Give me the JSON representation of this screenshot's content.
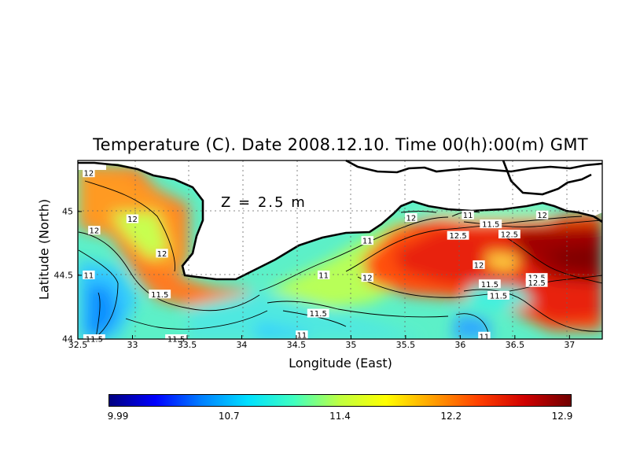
{
  "chart_data": {
    "type": "heatmap",
    "title": "Temperature (C). Date 2008.12.10. Time 00(h):00(m) GMT",
    "xlabel": "Longitude (East)",
    "ylabel": "Latitude (North)",
    "annotation": "Z = 2.5 m",
    "xlim": [
      32.5,
      37.3
    ],
    "ylim": [
      44.0,
      45.4
    ],
    "xticks": [
      "32.5",
      "33",
      "33.5",
      "34",
      "34.5",
      "35",
      "35.5",
      "36",
      "36.5",
      "37"
    ],
    "yticks": [
      "44",
      "44.5",
      "45"
    ],
    "grid": true,
    "colorbar": {
      "min": 9.99,
      "max": 12.9,
      "tick_labels": [
        "9.99",
        "10.7",
        "11.4",
        "12.2",
        "12.9"
      ],
      "colors": [
        "#000080",
        "#0000ff",
        "#0080ff",
        "#00e0ff",
        "#40ffc0",
        "#c0ff40",
        "#ffff00",
        "#ffa000",
        "#ff4000",
        "#d00000",
        "#700000"
      ]
    },
    "contour_labels": [
      {
        "value": "12",
        "lon": 32.6,
        "lat": 45.3
      },
      {
        "value": "12",
        "lon": 33.0,
        "lat": 44.94
      },
      {
        "value": "12",
        "lon": 32.65,
        "lat": 44.85
      },
      {
        "value": "12",
        "lon": 33.27,
        "lat": 44.67
      },
      {
        "value": "11",
        "lon": 32.6,
        "lat": 44.5
      },
      {
        "value": "11.5",
        "lon": 33.25,
        "lat": 44.35
      },
      {
        "value": "11.5",
        "lon": 34.7,
        "lat": 44.2
      },
      {
        "value": "11",
        "lon": 34.55,
        "lat": 44.03
      },
      {
        "value": "11",
        "lon": 34.75,
        "lat": 44.5
      },
      {
        "value": "11",
        "lon": 35.15,
        "lat": 44.77
      },
      {
        "value": "12",
        "lon": 35.15,
        "lat": 44.48
      },
      {
        "value": "12",
        "lon": 35.55,
        "lat": 44.95
      },
      {
        "value": "11",
        "lon": 36.07,
        "lat": 44.97
      },
      {
        "value": "11.5",
        "lon": 36.28,
        "lat": 44.9
      },
      {
        "value": "12.5",
        "lon": 35.98,
        "lat": 44.81
      },
      {
        "value": "12.5",
        "lon": 36.45,
        "lat": 44.82
      },
      {
        "value": "12",
        "lon": 36.75,
        "lat": 44.97
      },
      {
        "value": "12",
        "lon": 36.17,
        "lat": 44.58
      },
      {
        "value": "11.5",
        "lon": 36.27,
        "lat": 44.43
      },
      {
        "value": "11.5",
        "lon": 36.35,
        "lat": 44.34
      },
      {
        "value": "12.5",
        "lon": 36.7,
        "lat": 44.48
      },
      {
        "value": "12.5",
        "lon": 36.7,
        "lat": 44.44
      },
      {
        "value": "11",
        "lon": 36.22,
        "lat": 44.02
      },
      {
        "value": "11.5",
        "lon": 32.65,
        "lat": 44.0
      },
      {
        "value": "11.5",
        "lon": 33.4,
        "lat": 44.0
      }
    ]
  }
}
